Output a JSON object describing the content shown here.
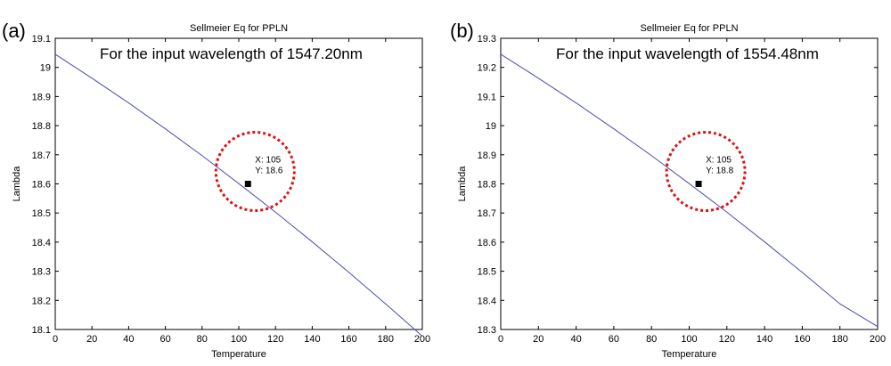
{
  "chart_data": [
    {
      "panel_label": "(a)",
      "type": "line",
      "title": "Sellmeier Eq for PPLN",
      "xlabel": "Temperature",
      "ylabel": "Lambda",
      "xlim": [
        0,
        200
      ],
      "ylim": [
        18.1,
        19.1
      ],
      "xticks": [
        0,
        20,
        40,
        60,
        80,
        100,
        120,
        140,
        160,
        180,
        200
      ],
      "yticks": [
        18.1,
        18.2,
        18.3,
        18.4,
        18.5,
        18.6,
        18.7,
        18.8,
        18.9,
        19,
        19.1
      ],
      "ytick_labels": [
        "18.1",
        "18.2",
        "18.3",
        "18.4",
        "18.5",
        "18.6",
        "18.7",
        "18.8",
        "18.9",
        "19",
        "19.1"
      ],
      "series": [
        {
          "name": "Lambda",
          "color": "#4b4bb4",
          "x": [
            0,
            20,
            40,
            60,
            80,
            100,
            120,
            140,
            160,
            180,
            200
          ],
          "y": [
            19.045,
            18.963,
            18.878,
            18.789,
            18.697,
            18.601,
            18.503,
            18.401,
            18.296,
            18.188,
            18.077
          ]
        }
      ],
      "annotation": "For the input wavelength of 1547.20nm",
      "datatip": {
        "x": 105,
        "y": 18.6,
        "x_label": "X: 105",
        "y_label": "Y: 18.6"
      },
      "highlight_color": "#e01010"
    },
    {
      "panel_label": "(b)",
      "type": "line",
      "title": "Sellmeier Eq for PPLN",
      "xlabel": "Temperature",
      "ylabel": "Lambda",
      "xlim": [
        0,
        200
      ],
      "ylim": [
        18.3,
        19.3
      ],
      "xticks": [
        0,
        20,
        40,
        60,
        80,
        100,
        120,
        140,
        160,
        180,
        200
      ],
      "yticks": [
        18.3,
        18.4,
        18.5,
        18.6,
        18.7,
        18.8,
        18.9,
        19,
        19.1,
        19.2,
        19.3
      ],
      "ytick_labels": [
        "18.3",
        "18.4",
        "18.5",
        "18.6",
        "18.7",
        "18.8",
        "18.9",
        "19",
        "19.1",
        "19.2",
        "19.3"
      ],
      "series": [
        {
          "name": "Lambda",
          "color": "#4b4bb4",
          "x": [
            0,
            20,
            40,
            60,
            80,
            100,
            120,
            140,
            160,
            180,
            200
          ],
          "y": [
            19.245,
            19.163,
            19.078,
            18.989,
            18.897,
            18.801,
            18.703,
            18.601,
            18.496,
            18.388,
            18.31
          ]
        }
      ],
      "annotation": "For the input wavelength of 1554.48nm",
      "datatip": {
        "x": 105,
        "y": 18.8,
        "x_label": "X: 105",
        "y_label": "Y: 18.8"
      },
      "highlight_color": "#e01010"
    }
  ]
}
